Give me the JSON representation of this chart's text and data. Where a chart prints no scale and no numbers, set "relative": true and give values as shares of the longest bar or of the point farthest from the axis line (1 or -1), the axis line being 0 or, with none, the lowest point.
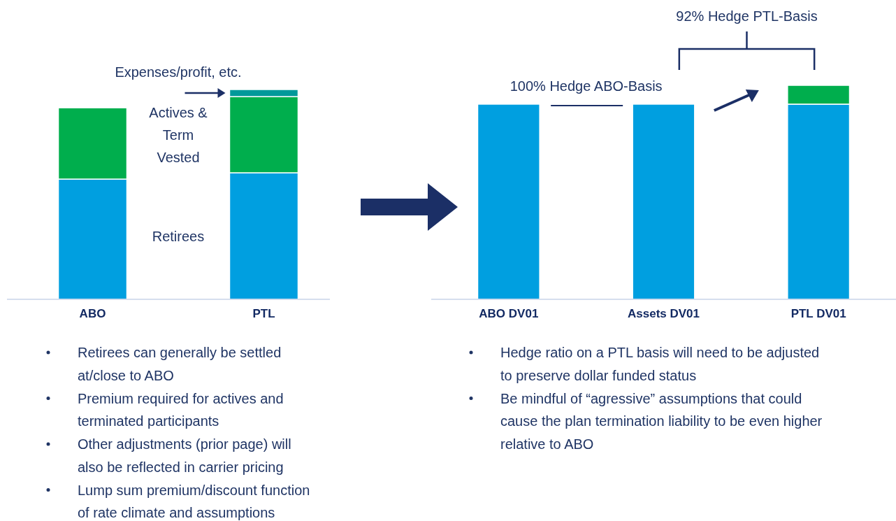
{
  "chart_data": [
    {
      "type": "bar",
      "stacked": true,
      "relative": true,
      "categories": [
        "ABO",
        "PTL"
      ],
      "series": [
        {
          "name": "Retirees",
          "color": "#009fe0",
          "values": [
            0.573,
            0.603
          ]
        },
        {
          "name": "Actives & Term Vested",
          "color": "#00ae4d",
          "values": [
            0.34,
            0.363
          ]
        },
        {
          "name": "Expenses/profit, etc.",
          "color": "#00999a",
          "values": [
            null,
            0.034
          ]
        }
      ],
      "annotations": [
        "Retirees can generally be settled at/close to ABO",
        "Premium required for actives and terminated participants",
        "Other adjustments (prior page) will also be reflected in carrier pricing",
        "Lump sum premium/discount function of rate climate and assumptions"
      ]
    },
    {
      "type": "bar",
      "stacked": true,
      "relative": true,
      "categories": [
        "ABO DV01",
        "Assets DV01",
        "PTL DV01"
      ],
      "series": [
        {
          "color": "#009fe0",
          "values": [
            0.912,
            0.912,
            0.912
          ]
        },
        {
          "color": "#00ae4d",
          "values": [
            null,
            null,
            0.088
          ]
        }
      ],
      "annotations": [
        "100% Hedge ABO-Basis",
        "92% Hedge PTL-Basis",
        "Hedge ratio on a PTL basis will need to be adjusted to preserve dollar funded status",
        "Be mindful of “agressive” assumptions that could cause the plan termination liability to be even higher relative to ABO"
      ]
    }
  ]
}
